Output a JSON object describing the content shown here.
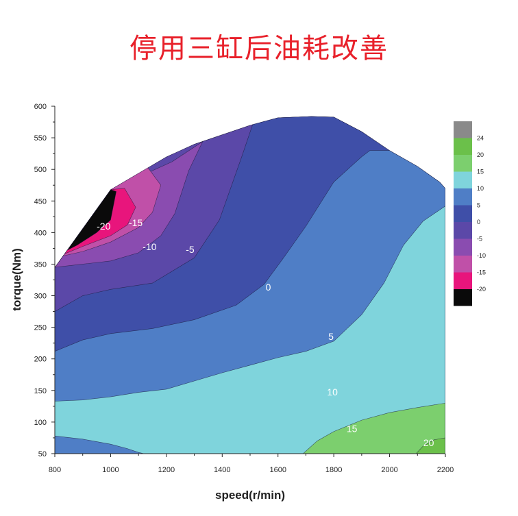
{
  "title": "停用三缸后油耗改善",
  "chart_data": {
    "type": "contour",
    "xlabel": "speed(r/min)",
    "ylabel": "torque(Nm)",
    "xlim": [
      800,
      2200
    ],
    "ylim": [
      50,
      600
    ],
    "xticks": [
      800,
      1000,
      1200,
      1400,
      1600,
      1800,
      2000,
      2200
    ],
    "yticks": [
      50,
      100,
      150,
      200,
      250,
      300,
      350,
      400,
      450,
      500,
      550,
      600
    ],
    "boundary": [
      [
        800,
        50
      ],
      [
        800,
        345
      ],
      [
        1000,
        468
      ],
      [
        1200,
        520
      ],
      [
        1300,
        540
      ],
      [
        1500,
        570
      ],
      [
        1600,
        582
      ],
      [
        1720,
        584
      ],
      [
        1800,
        583
      ],
      [
        1900,
        560
      ],
      [
        2000,
        530
      ],
      [
        2100,
        505
      ],
      [
        2180,
        480
      ],
      [
        2200,
        470
      ],
      [
        2200,
        50
      ]
    ],
    "levels": [
      {
        "label": "24",
        "color": "#8a8a8a"
      },
      {
        "label": "20",
        "color": "#6bc04a"
      },
      {
        "label": "15",
        "color": "#7ccf6e"
      },
      {
        "label": "10",
        "color": "#7fd4dc"
      },
      {
        "label": "5",
        "color": "#4f7ec6"
      },
      {
        "label": "0",
        "color": "#3f4fa8"
      },
      {
        "label": "-5",
        "color": "#5b48a8"
      },
      {
        "label": "-10",
        "color": "#8a4cb0"
      },
      {
        "label": "-15",
        "color": "#c050a8"
      },
      {
        "label": "-20",
        "color": "#e8157c"
      },
      {
        "label": "",
        "color": "#0a0a0a"
      }
    ],
    "regions": [
      {
        "level": "-5",
        "color": "#5b48a8",
        "points": [
          [
            800,
            50
          ],
          [
            800,
            345
          ],
          [
            1000,
            468
          ],
          [
            1200,
            520
          ],
          [
            1300,
            540
          ],
          [
            1500,
            570
          ],
          [
            1600,
            582
          ],
          [
            1720,
            584
          ],
          [
            1800,
            583
          ],
          [
            1900,
            560
          ],
          [
            2000,
            530
          ],
          [
            2100,
            505
          ],
          [
            2180,
            480
          ],
          [
            2200,
            470
          ],
          [
            2200,
            50
          ]
        ]
      },
      {
        "level": "-10",
        "color": "#8a4cb0",
        "points": [
          [
            800,
            345
          ],
          [
            1000,
            468
          ],
          [
            1220,
            512
          ],
          [
            1330,
            544
          ],
          [
            1280,
            498
          ],
          [
            1230,
            430
          ],
          [
            1180,
            395
          ],
          [
            1100,
            368
          ],
          [
            1000,
            355
          ],
          [
            900,
            350
          ],
          [
            800,
            345
          ]
        ]
      },
      {
        "level": "-15",
        "color": "#c050a8",
        "points": [
          [
            800,
            345
          ],
          [
            1000,
            468
          ],
          [
            1130,
            505
          ],
          [
            1180,
            475
          ],
          [
            1150,
            432
          ],
          [
            1100,
            408
          ],
          [
            1000,
            385
          ],
          [
            900,
            370
          ],
          [
            800,
            360
          ],
          [
            800,
            345
          ]
        ]
      },
      {
        "level": "-20",
        "color": "#e8157c",
        "points": [
          [
            800,
            345
          ],
          [
            1000,
            468
          ],
          [
            1050,
            470
          ],
          [
            1090,
            440
          ],
          [
            1060,
            412
          ],
          [
            1000,
            395
          ],
          [
            900,
            378
          ],
          [
            800,
            360
          ],
          [
            800,
            345
          ]
        ]
      },
      {
        "level": "-20",
        "color": "#0a0a0a",
        "points": [
          [
            800,
            345
          ],
          [
            1000,
            468
          ],
          [
            1020,
            465
          ],
          [
            1000,
            420
          ],
          [
            950,
            400
          ],
          [
            880,
            380
          ],
          [
            800,
            362
          ],
          [
            800,
            345
          ]
        ]
      },
      {
        "level": "0",
        "color": "#3f4fa8",
        "points": [
          [
            800,
            50
          ],
          [
            800,
            275
          ],
          [
            900,
            300
          ],
          [
            1000,
            310
          ],
          [
            1150,
            320
          ],
          [
            1300,
            360
          ],
          [
            1390,
            420
          ],
          [
            1470,
            520
          ],
          [
            1510,
            572
          ],
          [
            1600,
            582
          ],
          [
            1720,
            584
          ],
          [
            1800,
            583
          ],
          [
            1900,
            560
          ],
          [
            2000,
            530
          ],
          [
            2100,
            505
          ],
          [
            2180,
            480
          ],
          [
            2200,
            470
          ],
          [
            2200,
            50
          ]
        ]
      },
      {
        "level": "5",
        "color": "#4f7ec6",
        "points": [
          [
            800,
            50
          ],
          [
            800,
            212
          ],
          [
            900,
            230
          ],
          [
            1000,
            240
          ],
          [
            1150,
            248
          ],
          [
            1300,
            262
          ],
          [
            1450,
            285
          ],
          [
            1550,
            318
          ],
          [
            1620,
            360
          ],
          [
            1700,
            410
          ],
          [
            1800,
            480
          ],
          [
            1900,
            520
          ],
          [
            1930,
            530
          ],
          [
            2000,
            530
          ],
          [
            2100,
            505
          ],
          [
            2180,
            480
          ],
          [
            2200,
            470
          ],
          [
            2200,
            50
          ]
        ]
      },
      {
        "level": "10",
        "color": "#7fd4dc",
        "points": [
          [
            800,
            50
          ],
          [
            800,
            133
          ],
          [
            900,
            135
          ],
          [
            1000,
            140
          ],
          [
            1100,
            147
          ],
          [
            1200,
            152
          ],
          [
            1300,
            165
          ],
          [
            1400,
            178
          ],
          [
            1500,
            190
          ],
          [
            1600,
            202
          ],
          [
            1700,
            212
          ],
          [
            1800,
            228
          ],
          [
            1900,
            270
          ],
          [
            1980,
            320
          ],
          [
            2050,
            380
          ],
          [
            2120,
            418
          ],
          [
            2200,
            442
          ],
          [
            2200,
            50
          ]
        ]
      },
      {
        "level": "15",
        "color": "#7ccf6e",
        "points": [
          [
            1690,
            50
          ],
          [
            1740,
            70
          ],
          [
            1800,
            85
          ],
          [
            1900,
            103
          ],
          [
            2000,
            115
          ],
          [
            2100,
            123
          ],
          [
            2200,
            130
          ],
          [
            2200,
            50
          ]
        ]
      },
      {
        "level": "10-low",
        "color": "#4f7ec6",
        "points": [
          [
            800,
            50
          ],
          [
            800,
            78
          ],
          [
            900,
            73
          ],
          [
            1000,
            65
          ],
          [
            1060,
            58
          ],
          [
            1100,
            52
          ],
          [
            1120,
            50
          ]
        ]
      },
      {
        "level": "20",
        "color": "#6bc04a",
        "points": [
          [
            2095,
            50
          ],
          [
            2120,
            62
          ],
          [
            2160,
            72
          ],
          [
            2200,
            75
          ],
          [
            2200,
            50
          ]
        ]
      }
    ],
    "contour_labels": [
      {
        "text": "-20",
        "x": 975,
        "y": 405
      },
      {
        "text": "-15",
        "x": 1090,
        "y": 410
      },
      {
        "text": "-10",
        "x": 1140,
        "y": 372
      },
      {
        "text": "-5",
        "x": 1285,
        "y": 368
      },
      {
        "text": "0",
        "x": 1565,
        "y": 308
      },
      {
        "text": "5",
        "x": 1790,
        "y": 230
      },
      {
        "text": "10",
        "x": 1795,
        "y": 142
      },
      {
        "text": "15",
        "x": 1865,
        "y": 84
      },
      {
        "text": "20",
        "x": 2140,
        "y": 62
      }
    ]
  }
}
